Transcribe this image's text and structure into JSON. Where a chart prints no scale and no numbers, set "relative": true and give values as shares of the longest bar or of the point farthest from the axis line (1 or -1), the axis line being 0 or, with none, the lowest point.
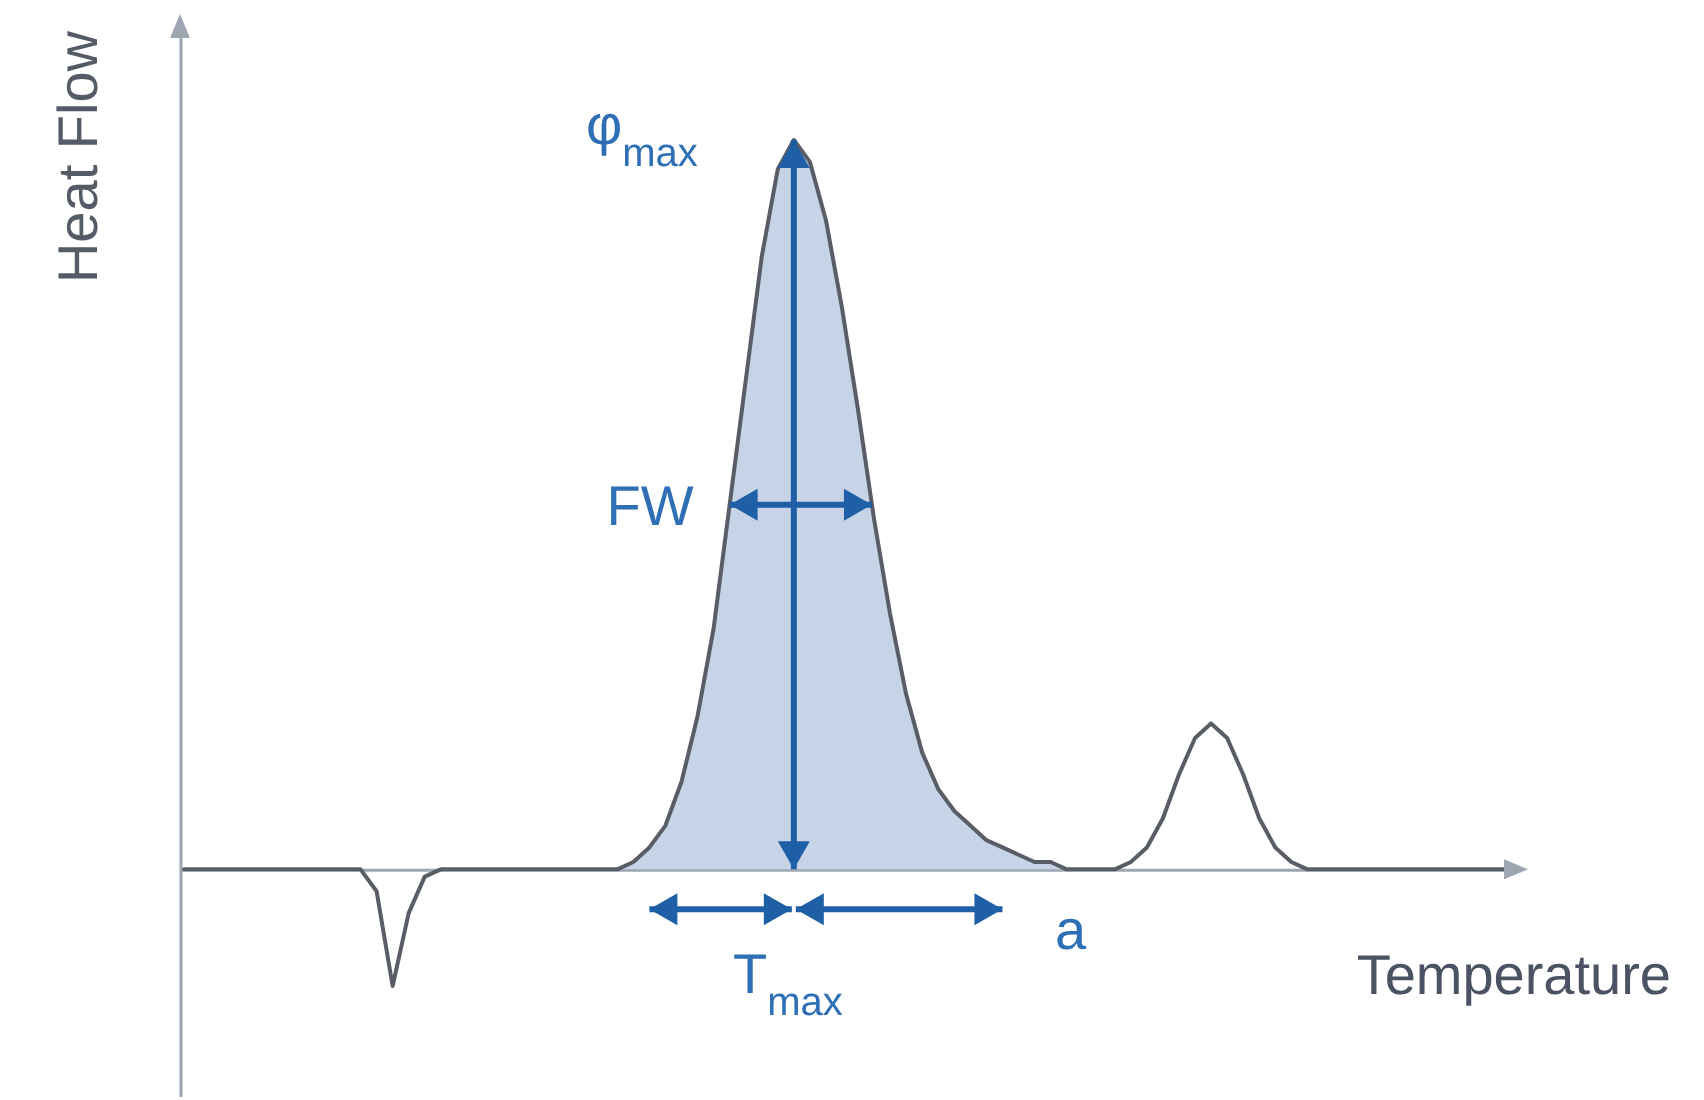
{
  "chart_data": {
    "type": "line",
    "relative": true,
    "xlabel": "Temperature",
    "ylabel": "Heat Flow",
    "categories": [
      null,
      null,
      null,
      null,
      null,
      null,
      null,
      null,
      null,
      null,
      null,
      null,
      null,
      null,
      null,
      null,
      null,
      null,
      null,
      null,
      null,
      null,
      null,
      null,
      null,
      null,
      null,
      null,
      null,
      null,
      null,
      null,
      null,
      null,
      null,
      null,
      null,
      null,
      null,
      null,
      null,
      null,
      null,
      null,
      null,
      null,
      null,
      null,
      null,
      null,
      null,
      null,
      null,
      null,
      null,
      null,
      null,
      null,
      null,
      null,
      null,
      null,
      null,
      null,
      null,
      null,
      null,
      null,
      null,
      null,
      null,
      null,
      null,
      null,
      null,
      null,
      null,
      null,
      null,
      null,
      null,
      null,
      null,
      null
    ],
    "series": [
      {
        "type": "area",
        "color": "#c7d4e8",
        "values": [
          null,
          null,
          null,
          null,
          null,
          null,
          null,
          null,
          null,
          null,
          null,
          null,
          null,
          null,
          null,
          null,
          null,
          null,
          null,
          null,
          null,
          null,
          null,
          null,
          null,
          null,
          null,
          0,
          0.01,
          0.03,
          0.06,
          0.12,
          0.21,
          0.33,
          0.5,
          0.67,
          0.84,
          0.96,
          1,
          0.97,
          0.89,
          0.77,
          0.63,
          0.48,
          0.35,
          0.24,
          0.16,
          0.11,
          0.08,
          0.06,
          0.04,
          0.03,
          0.02,
          0.01,
          0.01,
          0,
          null,
          null,
          null,
          null,
          null,
          null,
          null,
          null,
          null,
          null,
          null,
          null,
          null,
          null,
          null,
          null,
          null,
          null,
          null,
          null,
          null,
          null,
          null,
          null,
          null,
          null,
          null,
          null
        ]
      },
      {
        "color": "#585d66",
        "values": [
          0,
          0,
          0,
          0,
          0,
          0,
          0,
          0,
          0,
          0,
          0,
          0,
          -0.03,
          -0.16,
          -0.06,
          -0.01,
          0,
          0,
          0,
          0,
          0,
          0,
          0,
          0,
          0,
          0,
          0,
          0,
          0.01,
          0.03,
          0.06,
          0.12,
          0.21,
          0.33,
          0.5,
          0.67,
          0.84,
          0.96,
          1,
          0.97,
          0.89,
          0.77,
          0.63,
          0.48,
          0.35,
          0.24,
          0.16,
          0.11,
          0.08,
          0.06,
          0.04,
          0.03,
          0.02,
          0.01,
          0.01,
          0,
          0,
          0,
          0,
          0.01,
          0.03,
          0.07,
          0.13,
          0.18,
          0.2,
          0.18,
          0.13,
          0.07,
          0.03,
          0.01,
          0,
          0,
          0,
          0,
          0,
          0,
          0,
          0,
          0,
          0,
          0,
          0,
          0,
          0
        ]
      }
    ],
    "annotations": [
      "φ$_{max}$",
      "FW",
      "T$_{max}$",
      "a"
    ]
  }
}
